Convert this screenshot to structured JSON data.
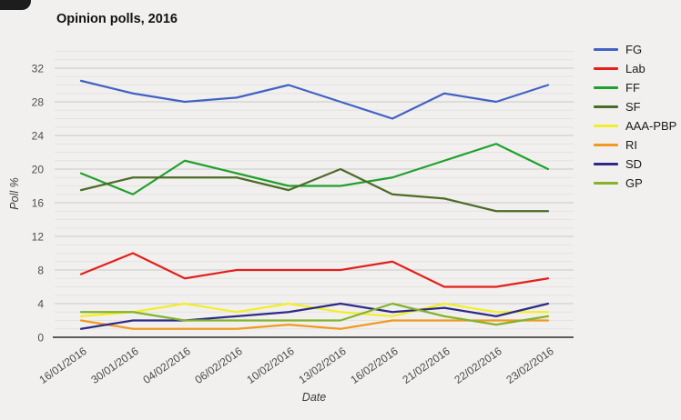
{
  "page": {
    "title": "Opinion polls, 2016"
  },
  "chart_data": {
    "type": "line",
    "title": "Opinion polls, 2016",
    "xlabel": "Date",
    "ylabel": "Poll %",
    "grid": "horizontal-only",
    "legend_position": "right",
    "x_categories": [
      "16/01/2016",
      "30/01/2016",
      "04/02/2016",
      "06/02/2016",
      "10/02/2016",
      "13/02/2016",
      "16/02/2016",
      "21/02/2016",
      "22/02/2016",
      "23/02/2016"
    ],
    "y_axis": {
      "min": 0,
      "max": 32,
      "tick_step": 4,
      "minor_step": 1,
      "ticks": [
        0,
        4,
        8,
        12,
        16,
        20,
        24,
        28,
        32
      ]
    },
    "series": [
      {
        "name": "FG",
        "color": "#4262c4",
        "values": [
          30.5,
          29,
          28,
          28.5,
          30,
          28,
          26,
          29,
          28,
          30
        ]
      },
      {
        "name": "Lab",
        "color": "#e3201b",
        "values": [
          7.5,
          10,
          7,
          8,
          8,
          8,
          9,
          6,
          6,
          7
        ]
      },
      {
        "name": "FF",
        "color": "#20a02c",
        "values": [
          19.5,
          17,
          21,
          19.5,
          18,
          18,
          19,
          21,
          23,
          20
        ]
      },
      {
        "name": "SF",
        "color": "#4d6b28",
        "values": [
          17.5,
          19,
          19,
          19,
          17.5,
          20,
          17,
          16.5,
          15,
          15
        ]
      },
      {
        "name": "AAA-PBP",
        "color": "#f2ee2a",
        "values": [
          2.5,
          3,
          4,
          3,
          4,
          3,
          2.5,
          4,
          3,
          3
        ]
      },
      {
        "name": "RI",
        "color": "#f09a20",
        "values": [
          2,
          1,
          1,
          1,
          1.5,
          1,
          2,
          2,
          2,
          2
        ]
      },
      {
        "name": "SD",
        "color": "#2f2a85",
        "values": [
          1,
          2,
          2,
          2.5,
          3,
          4,
          3,
          3.5,
          2.5,
          4
        ]
      },
      {
        "name": "GP",
        "color": "#84b32c",
        "values": [
          3,
          3,
          2,
          2,
          2,
          2,
          4,
          2.5,
          1.5,
          2.5
        ]
      }
    ]
  }
}
